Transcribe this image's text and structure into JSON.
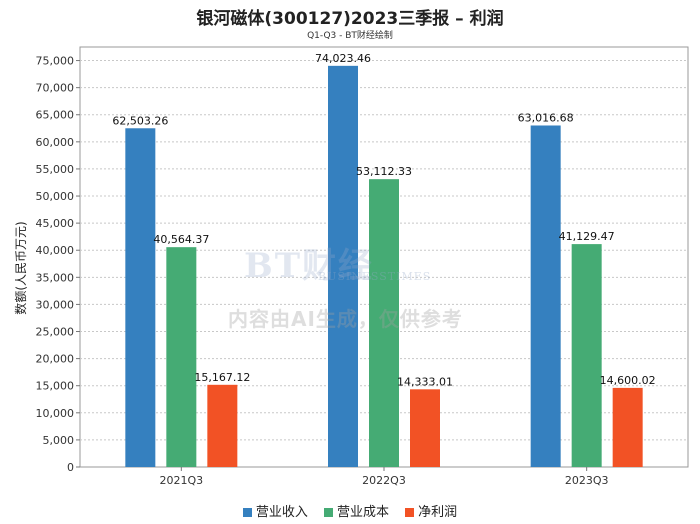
{
  "chart_data": {
    "type": "bar",
    "title": "银河磁体(300127)2023三季报 – 利润",
    "subtitle": "Q1-Q3 - BT财经绘制",
    "xlabel": "",
    "ylabel": "数额(人民币万元)",
    "ylim": [
      0,
      77500
    ],
    "yticks": [
      0,
      5000,
      10000,
      15000,
      20000,
      25000,
      30000,
      35000,
      40000,
      45000,
      50000,
      55000,
      60000,
      65000,
      70000,
      75000
    ],
    "grid": true,
    "legend_position": "bottom",
    "categories": [
      "2021Q3",
      "2022Q3",
      "2023Q3"
    ],
    "series": [
      {
        "name": "营业收入",
        "color": "#3580bf",
        "values": [
          62503.26,
          74023.46,
          63016.68
        ]
      },
      {
        "name": "营业成本",
        "color": "#45ab74",
        "values": [
          40564.37,
          53112.33,
          41129.47
        ]
      },
      {
        "name": "净利润",
        "color": "#f25225",
        "values": [
          15167.12,
          14333.01,
          14600.02
        ]
      }
    ]
  },
  "watermark": {
    "logo": "BT财经",
    "sub": "BUSINESSTIMES",
    "text": "内容由AI生成，仅供参考"
  }
}
